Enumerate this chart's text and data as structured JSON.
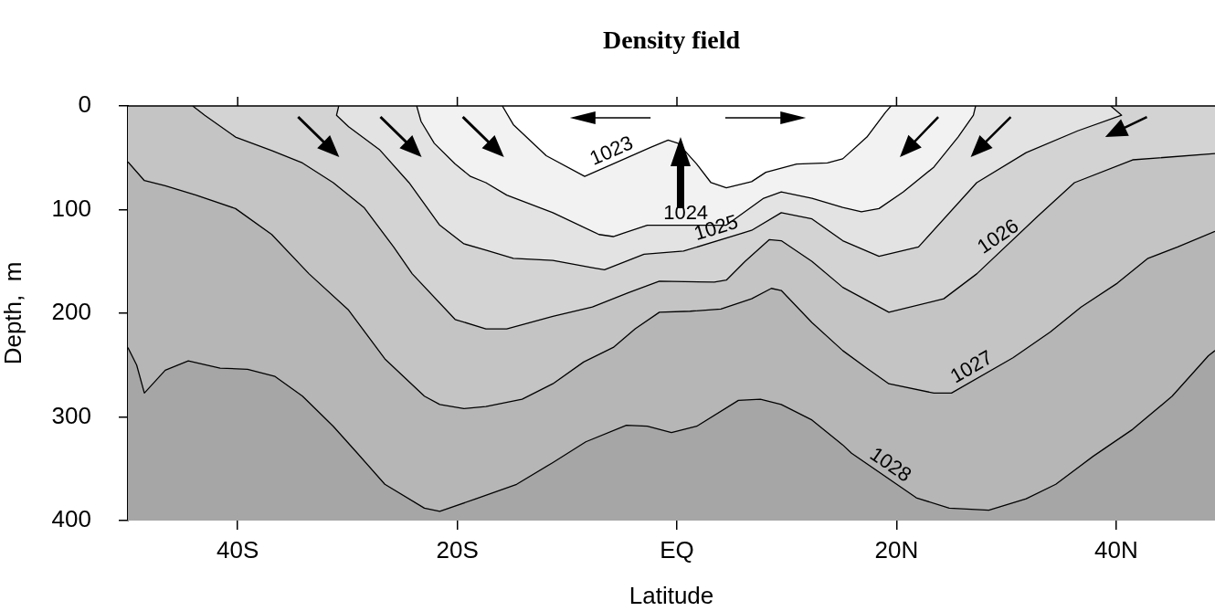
{
  "chart_data": {
    "type": "area",
    "title": "Density field",
    "xlabel": "Latitude",
    "ylabel": "Depth,  m",
    "xlim": [
      -50,
      49
    ],
    "xticks": [
      {
        "value": -40,
        "label": "40S"
      },
      {
        "value": -20,
        "label": "20S"
      },
      {
        "value": 0,
        "label": "EQ"
      },
      {
        "value": 20,
        "label": "20N"
      },
      {
        "value": 40,
        "label": "40N"
      }
    ],
    "ylim": [
      400,
      0
    ],
    "yticks": [
      0,
      100,
      200,
      300,
      400
    ],
    "series": [
      {
        "name": "1023",
        "color": "#ffffff",
        "x": [
          -15.9,
          -14.9,
          -11.9,
          -8.4,
          -2.4,
          -0.8,
          0.1,
          1.8,
          3.1,
          4.5,
          6.8,
          8.1,
          10.9,
          13.7,
          15.1,
          17.3,
          19,
          19.5
        ],
        "values": [
          0,
          18,
          48,
          68,
          40,
          33,
          36,
          56,
          74,
          79,
          73,
          64,
          56,
          55,
          51,
          30,
          6,
          0
        ]
      },
      {
        "name": "1024",
        "color": "#f2f2f2",
        "x": [
          -23.7,
          -23.3,
          -22.1,
          -20.2,
          -18.8,
          -17.4,
          -15.5,
          -11.3,
          -7.1,
          -5.8,
          -2.7,
          4.5,
          7.9,
          9.5,
          12.3,
          15.1,
          16.8,
          18.4,
          20.6,
          23.4,
          25.6,
          27,
          27.2
        ],
        "values": [
          0,
          15,
          36,
          56,
          68,
          74,
          86,
          103,
          124,
          126,
          115,
          115,
          89,
          83,
          89,
          98,
          102,
          99,
          83,
          59,
          30,
          9,
          0
        ]
      },
      {
        "name": "1025",
        "color": "#e3e3e3",
        "x": [
          -30.8,
          -31,
          -29.9,
          -27.1,
          -24.4,
          -21.6,
          -19.4,
          -17.4,
          -14.9,
          -11.3,
          -7.7,
          -6.6,
          -3,
          0.6,
          6.8,
          9.5,
          12.3,
          15.1,
          18.4,
          22,
          27.3,
          31.8,
          36.5,
          40.5,
          39.5
        ],
        "values": [
          0,
          9,
          20,
          42,
          74,
          115,
          133,
          139,
          147,
          149,
          156,
          158,
          143,
          140,
          120,
          103,
          109,
          130,
          145,
          136,
          74,
          45,
          24,
          9,
          0
        ]
      },
      {
        "name": "1026",
        "color": "#d3d3d3",
        "x": [
          -44.1,
          -43,
          -40.2,
          -36.9,
          -34.1,
          -31.3,
          -28.5,
          -25.8,
          -24.1,
          -20.2,
          -17.4,
          -15.5,
          -11.3,
          -7.7,
          -4.4,
          -1.6,
          3.4,
          4.5,
          6.2,
          8.4,
          9.5,
          12.3,
          15.1,
          19.3,
          24.3,
          27.3,
          32.9,
          36.2,
          41.5,
          49
        ],
        "values": [
          0,
          9,
          30,
          43,
          55,
          74,
          98,
          136,
          162,
          206,
          215,
          215,
          203,
          194,
          180,
          169,
          170,
          168,
          150,
          129,
          130,
          150,
          175,
          199,
          186,
          162,
          106,
          74,
          52,
          46
        ]
      },
      {
        "name": "1027",
        "color": "#c4c4c4",
        "x": [
          -50,
          -48.5,
          -46.6,
          -43.8,
          -40.2,
          -36.9,
          -33.5,
          -29.9,
          -26.6,
          -23,
          -21.6,
          -19.4,
          -17.4,
          -14.1,
          -11.3,
          -8.5,
          -5.8,
          -3.8,
          -1.6,
          1.2,
          4,
          6.8,
          8.6,
          9.5,
          12.3,
          15.1,
          17.3,
          19.3,
          23.4,
          25,
          30.6,
          34,
          36.8,
          40.1,
          42.9,
          45.6,
          49
        ],
        "values": [
          54,
          72,
          77,
          86,
          99,
          124,
          162,
          197,
          244,
          280,
          288,
          292,
          290,
          283,
          268,
          247,
          233,
          215,
          199,
          198,
          196,
          186,
          176,
          178,
          209,
          236,
          253,
          268,
          277,
          277,
          243,
          218,
          194,
          171,
          147,
          136,
          121
        ]
      },
      {
        "name": "1028",
        "color": "#b6b6b6",
        "x": [
          -50,
          -49.2,
          -48.5,
          -46.6,
          -44.5,
          -41.6,
          -39.1,
          -36.6,
          -34.1,
          -31.3,
          -29.1,
          -26.6,
          -23,
          -21.6,
          -18.3,
          -14.6,
          -11.3,
          -8.3,
          -4.6,
          -2.7,
          -0.5,
          1.8,
          5.6,
          7.6,
          9.5,
          12.3,
          15.1,
          15.9,
          21.8,
          24.8,
          28.4,
          31.8,
          34.5,
          37.9,
          41.5,
          45.1,
          48.4,
          49
        ],
        "values": [
          233,
          250,
          277,
          255,
          246,
          253,
          254,
          261,
          280,
          309,
          335,
          365,
          388,
          391,
          379,
          365,
          344,
          324,
          308,
          309,
          315,
          309,
          284,
          283,
          288,
          303,
          327,
          335,
          378,
          388,
          390,
          379,
          365,
          338,
          312,
          280,
          241,
          236
        ]
      }
    ]
  }
}
